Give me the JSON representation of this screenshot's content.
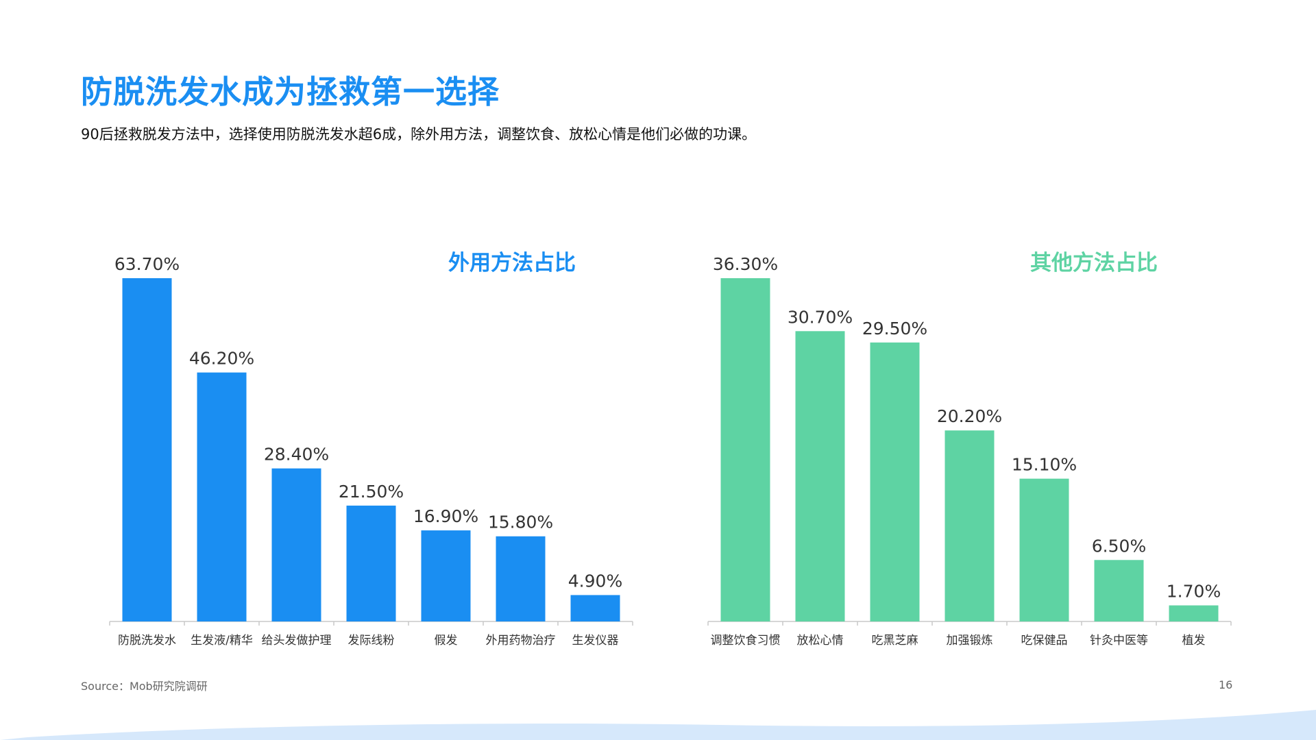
{
  "header": {
    "title": "防脱洗发水成为拯救第一选择",
    "subtitle": "90后拯救脱发方法中，选择使用防脱洗发水超6成，除外用方法，调整饮食、放松心情是他们必做的功课。"
  },
  "chart_data": [
    {
      "type": "bar",
      "title": "外用方法占比",
      "categories": [
        "防脱洗发水",
        "生发液/精华",
        "给头发做护理",
        "发际线粉",
        "假发",
        "外用药物治疗",
        "生发仪器"
      ],
      "values": [
        63.7,
        46.2,
        28.4,
        21.5,
        16.9,
        15.8,
        4.9
      ],
      "value_labels": [
        "63.70%",
        "46.20%",
        "28.40%",
        "21.50%",
        "16.90%",
        "15.80%",
        "4.90%"
      ],
      "ylim": [
        0,
        63.7
      ],
      "color": "#1a8ef2",
      "grid": false
    },
    {
      "type": "bar",
      "title": "其他方法占比",
      "categories": [
        "调整饮食习惯",
        "放松心情",
        "吃黑芝麻",
        "加强锻炼",
        "吃保健品",
        "针灸中医等",
        "植发"
      ],
      "values": [
        36.3,
        30.7,
        29.5,
        20.2,
        15.1,
        6.5,
        1.7
      ],
      "value_labels": [
        "36.30%",
        "30.70%",
        "29.50%",
        "20.20%",
        "15.10%",
        "6.50%",
        "1.70%"
      ],
      "ylim": [
        0,
        36.3
      ],
      "color": "#5ed3a3",
      "grid": false
    }
  ],
  "footer": {
    "source": "Source：Mob研究院调研",
    "page_number": "16"
  },
  "colors": {
    "accent": "#1a8ef2",
    "secondary": "#5ed3a3",
    "wave": "#d6e8fb"
  }
}
